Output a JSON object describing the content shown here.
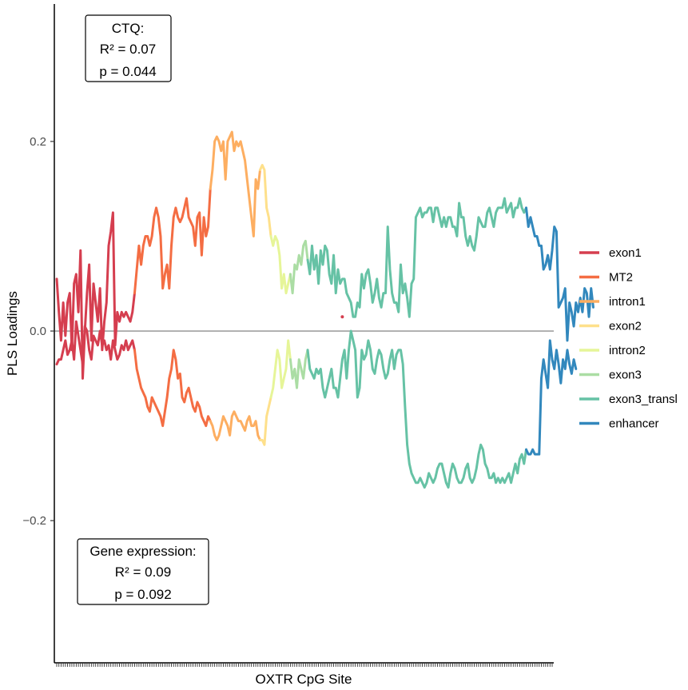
{
  "chart_data": {
    "type": "line",
    "xlabel": "OXTR CpG Site",
    "ylabel": "PLS Loadings",
    "ylim": [
      -0.35,
      0.345
    ],
    "yticks": [
      -0.2,
      0.0,
      0.2
    ],
    "ytick_labels": [
      "−0.2",
      "0.0",
      "0.2"
    ],
    "x_range": [
      1,
      230
    ],
    "reference_line": 0,
    "legend_position": "right",
    "annotations": [
      {
        "id": "ctq",
        "lines": [
          "CTQ:",
          "R² =  0.07",
          "p =  0.044"
        ]
      },
      {
        "id": "gene",
        "lines": [
          "Gene expression:",
          "R² =  0.09",
          "p =  0.092"
        ]
      }
    ],
    "segments": [
      {
        "name": "exon1",
        "color": "#d53e4f",
        "x_start": 1
      },
      {
        "name": "MT2",
        "color": "#f46d43",
        "x_start": 37
      },
      {
        "name": "intron1",
        "color": "#fdae61",
        "x_start": 72
      },
      {
        "name": "exon2",
        "color": "#fee08b",
        "x_start": 95
      },
      {
        "name": "intron2",
        "color": "#e6f598",
        "x_start": 100
      },
      {
        "name": "exon3",
        "color": "#abdda4",
        "x_start": 109
      },
      {
        "name": "exon3_transl",
        "color": "#66c2a5",
        "x_start": 117
      },
      {
        "name": "enhancer",
        "color": "#3288bd",
        "x_start": 218
      }
    ],
    "series": [
      {
        "name": "CTQ",
        "values": [
          0.055,
          0.02,
          -0.01,
          0.03,
          -0.005,
          0.03,
          0.04,
          -0.02,
          0.05,
          0.06,
          0.02,
          0.085,
          -0.05,
          0.0,
          0.04,
          0.07,
          -0.01,
          0.05,
          0.03,
          0.01,
          0.045,
          -0.02,
          0.01,
          0.03,
          0.09,
          0.105,
          0.125,
          -0.015,
          0.02,
          0.01,
          0.02,
          0.015,
          0.02,
          0.015,
          0.01,
          0.02,
          0.04,
          0.065,
          0.09,
          0.07,
          0.09,
          0.1,
          0.1,
          0.09,
          0.1,
          0.12,
          0.13,
          0.12,
          0.1,
          0.045,
          0.06,
          0.07,
          0.045,
          0.09,
          0.12,
          0.13,
          0.12,
          0.115,
          0.12,
          0.13,
          0.14,
          0.12,
          0.115,
          0.11,
          0.09,
          0.12,
          0.125,
          0.08,
          0.12,
          0.1,
          0.11,
          0.15,
          0.17,
          0.2,
          0.205,
          0.2,
          0.19,
          0.2,
          0.16,
          0.2,
          0.205,
          0.21,
          0.19,
          0.2,
          0.195,
          0.2,
          0.19,
          0.18,
          0.16,
          0.14,
          0.12,
          0.1,
          0.16,
          0.15,
          0.17,
          0.175,
          0.17,
          0.13,
          0.12,
          0.1,
          0.09,
          0.1,
          0.095,
          0.08,
          0.045,
          0.06,
          0.04,
          0.05,
          0.06,
          0.04,
          0.07,
          0.065,
          0.08,
          0.07,
          0.09,
          0.095,
          0.075,
          0.06,
          0.09,
          0.065,
          0.08,
          0.05,
          0.085,
          0.07,
          0.09,
          0.085,
          0.06,
          0.05,
          0.08,
          0.04,
          0.065,
          0.05,
          0.055,
          0.055,
          0.04,
          0.035,
          0.03,
          0.015,
          0.015,
          0.03,
          0.025,
          0.06,
          0.045,
          0.06,
          0.065,
          0.05,
          0.03,
          0.04,
          0.055,
          0.035,
          0.025,
          0.04,
          0.04,
          0.11,
          0.065,
          0.04,
          0.03,
          0.03,
          0.02,
          0.07,
          0.04,
          0.05,
          0.035,
          0.015,
          0.05,
          0.055,
          0.12,
          0.125,
          0.13,
          0.12,
          0.125,
          0.125,
          0.13,
          0.13,
          0.115,
          0.13,
          0.13,
          0.12,
          0.11,
          0.12,
          0.11,
          0.12,
          0.12,
          0.11,
          0.11,
          0.1,
          0.135,
          0.12,
          0.12,
          0.1,
          0.09,
          0.1,
          0.09,
          0.085,
          0.1,
          0.12,
          0.115,
          0.11,
          0.11,
          0.125,
          0.13,
          0.12,
          0.11,
          0.125,
          0.13,
          0.13,
          0.13,
          0.14,
          0.125,
          0.13,
          0.135,
          0.12,
          0.13,
          0.13,
          0.14,
          0.13,
          0.125,
          0.13,
          0.11,
          0.12,
          0.11,
          0.1,
          0.1,
          0.09,
          0.09,
          0.065,
          0.07,
          0.08,
          0.065,
          0.085,
          0.11,
          0.105,
          0.025,
          0.03,
          0.035,
          0.045,
          -0.01,
          0.03,
          0.02,
          0.005,
          0.03,
          0.02,
          0.035,
          0.02,
          0.045,
          0.04,
          0.015,
          0.045,
          0.025
        ]
      },
      {
        "name": "Gene expression",
        "values": [
          -0.035,
          -0.03,
          -0.03,
          -0.02,
          -0.01,
          -0.025,
          -0.02,
          -0.01,
          -0.03,
          0.01,
          -0.005,
          -0.02,
          -0.035,
          0.005,
          0.0,
          -0.02,
          -0.03,
          -0.005,
          -0.01,
          -0.015,
          0.0,
          -0.015,
          -0.01,
          -0.02,
          -0.015,
          -0.03,
          -0.01,
          -0.02,
          -0.03,
          -0.025,
          -0.015,
          -0.02,
          -0.01,
          -0.02,
          -0.015,
          -0.01,
          -0.02,
          -0.04,
          -0.05,
          -0.06,
          -0.065,
          -0.07,
          -0.08,
          -0.085,
          -0.07,
          -0.075,
          -0.08,
          -0.085,
          -0.09,
          -0.1,
          -0.085,
          -0.07,
          -0.05,
          -0.04,
          -0.02,
          -0.03,
          -0.05,
          -0.045,
          -0.07,
          -0.075,
          -0.065,
          -0.06,
          -0.07,
          -0.08,
          -0.085,
          -0.075,
          -0.08,
          -0.09,
          -0.095,
          -0.1,
          -0.09,
          -0.095,
          -0.1,
          -0.11,
          -0.115,
          -0.11,
          -0.1,
          -0.09,
          -0.095,
          -0.1,
          -0.11,
          -0.09,
          -0.085,
          -0.09,
          -0.095,
          -0.095,
          -0.1,
          -0.105,
          -0.095,
          -0.09,
          -0.1,
          -0.1,
          -0.095,
          -0.11,
          -0.115,
          -0.115,
          -0.12,
          -0.09,
          -0.08,
          -0.07,
          -0.06,
          -0.04,
          -0.02,
          -0.03,
          -0.06,
          -0.05,
          -0.04,
          -0.01,
          -0.03,
          -0.05,
          -0.04,
          -0.06,
          -0.03,
          -0.04,
          -0.05,
          -0.03,
          -0.02,
          -0.04,
          -0.045,
          -0.05,
          -0.04,
          -0.045,
          -0.04,
          -0.06,
          -0.07,
          -0.06,
          -0.05,
          -0.04,
          -0.06,
          -0.06,
          -0.07,
          -0.05,
          -0.03,
          -0.02,
          -0.05,
          -0.02,
          0.0,
          -0.01,
          -0.02,
          -0.07,
          -0.06,
          -0.02,
          -0.03,
          -0.025,
          -0.01,
          -0.02,
          -0.04,
          -0.045,
          -0.03,
          -0.02,
          -0.025,
          -0.04,
          -0.05,
          -0.045,
          -0.03,
          -0.02,
          -0.04,
          -0.025,
          -0.02,
          -0.02,
          -0.035,
          -0.08,
          -0.12,
          -0.14,
          -0.15,
          -0.155,
          -0.16,
          -0.16,
          -0.155,
          -0.16,
          -0.165,
          -0.16,
          -0.15,
          -0.155,
          -0.16,
          -0.155,
          -0.145,
          -0.14,
          -0.14,
          -0.15,
          -0.16,
          -0.165,
          -0.15,
          -0.14,
          -0.145,
          -0.155,
          -0.16,
          -0.16,
          -0.155,
          -0.145,
          -0.14,
          -0.155,
          -0.16,
          -0.155,
          -0.145,
          -0.13,
          -0.12,
          -0.125,
          -0.14,
          -0.145,
          -0.155,
          -0.155,
          -0.15,
          -0.16,
          -0.155,
          -0.16,
          -0.155,
          -0.16,
          -0.155,
          -0.15,
          -0.16,
          -0.15,
          -0.14,
          -0.15,
          -0.135,
          -0.13,
          -0.14,
          -0.125,
          -0.13,
          -0.13,
          -0.125,
          -0.13,
          -0.13,
          -0.13,
          -0.05,
          -0.03,
          -0.045,
          -0.06,
          -0.01,
          -0.03,
          -0.04,
          -0.02,
          -0.035,
          -0.055,
          -0.03,
          -0.04,
          -0.02,
          -0.035,
          -0.045,
          -0.03,
          -0.04
        ]
      }
    ],
    "isolated_point": {
      "x": 133,
      "y": 0.015,
      "segment": "exon3_transl"
    }
  }
}
